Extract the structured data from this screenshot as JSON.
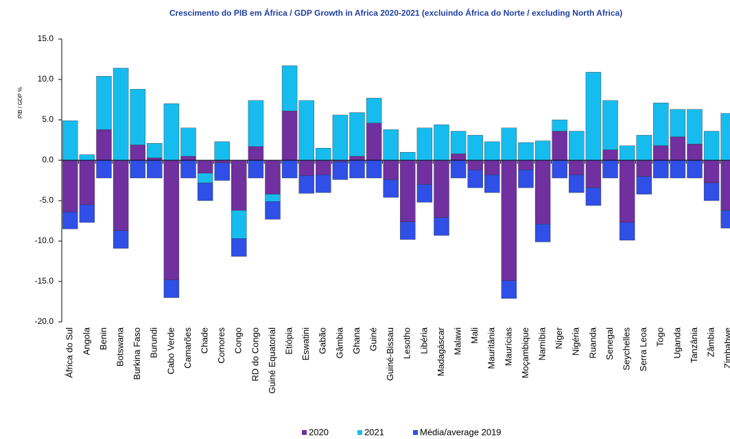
{
  "chart_data": {
    "type": "stacked_bar",
    "title": "Crescimento do PIB em África / GDP Growth in Africa 2020-2021  (excluindo África do Norte / excluding North Africa)",
    "y_label": "PIB / GDP %",
    "categories": [
      "África do Sul",
      "Angola",
      "Benin",
      "Botswana",
      "Burkina Faso",
      "Burundi",
      "Cabo Verde",
      "Camarões",
      "Chade",
      "Comores",
      "Congo",
      "RD do Congo",
      "Guiné Equatorial",
      "Etiópia",
      "Eswatini",
      "Gabão",
      "Gâmbia",
      "Ghana",
      "Guiné",
      "Guiné-Bissau",
      "Lesotho",
      "Libéria",
      "Madagáscar",
      "Malawi",
      "Mali",
      "Mauritânia",
      "Maurícias",
      "Moçambique",
      "Namíbia",
      "Níger",
      "Nigéria",
      "Ruanda",
      "Senegal",
      "Seychelles",
      "Serra Leoa",
      "Togo",
      "Uganda",
      "Tanzânia",
      "Zâmbia",
      "Zimbabwe"
    ],
    "series": [
      {
        "name": "2020",
        "color": "#7030a0",
        "values": [
          -6.4,
          -5.5,
          3.8,
          -8.7,
          1.9,
          0.3,
          -14.8,
          0.5,
          -1.6,
          -0.3,
          -6.2,
          1.7,
          -4.2,
          6.1,
          -1.9,
          -1.8,
          -0.2,
          0.5,
          4.6,
          -2.4,
          -7.6,
          -3.0,
          -7.1,
          0.8,
          -1.2,
          -1.8,
          -14.9,
          -1.2,
          -7.9,
          3.6,
          -1.8,
          -3.4,
          1.3,
          -7.7,
          -2.0,
          1.8,
          2.9,
          2.0,
          -2.8,
          -6.2
        ]
      },
      {
        "name": "2021",
        "color": "#17bcef",
        "values": [
          4.9,
          0.7,
          6.6,
          11.4,
          6.9,
          1.8,
          7.0,
          3.5,
          -1.2,
          2.3,
          -3.5,
          5.7,
          -0.9,
          5.6,
          7.4,
          1.5,
          5.6,
          5.4,
          3.1,
          3.8,
          1.0,
          4.0,
          4.4,
          2.8,
          3.1,
          2.3,
          4.0,
          2.2,
          2.4,
          1.4,
          3.6,
          10.9,
          6.1,
          1.8,
          3.1,
          5.3,
          3.4,
          4.3,
          3.6,
          5.8
        ]
      },
      {
        "name": "Média/average 2019",
        "color": "#2f4fe6",
        "values": [
          -2.1,
          -2.2,
          -2.2,
          -2.2,
          -2.2,
          -2.2,
          -2.2,
          -2.2,
          -2.2,
          -2.2,
          -2.2,
          -2.2,
          -2.2,
          -2.2,
          -2.2,
          -2.2,
          -2.2,
          -2.2,
          -2.2,
          -2.2,
          -2.2,
          -2.2,
          -2.2,
          -2.2,
          -2.2,
          -2.2,
          -2.2,
          -2.2,
          -2.2,
          -2.2,
          -2.2,
          -2.2,
          -2.2,
          -2.2,
          -2.2,
          -2.2,
          -2.2,
          -2.2,
          -2.2,
          -2.2
        ]
      }
    ],
    "ylim": [
      -20,
      15
    ],
    "yticks": [
      {
        "value": -20,
        "label": "-20.0"
      },
      {
        "value": -15,
        "label": "-15.0"
      },
      {
        "value": -10,
        "label": "-10.0"
      },
      {
        "value": -5,
        "label": "-5.0"
      },
      {
        "value": 0,
        "label": "0.0"
      },
      {
        "value": 5,
        "label": "5.0"
      },
      {
        "value": 10,
        "label": "10.0"
      },
      {
        "value": 15,
        "label": "15.0"
      }
    ],
    "grid": false,
    "legend": "bottom"
  }
}
